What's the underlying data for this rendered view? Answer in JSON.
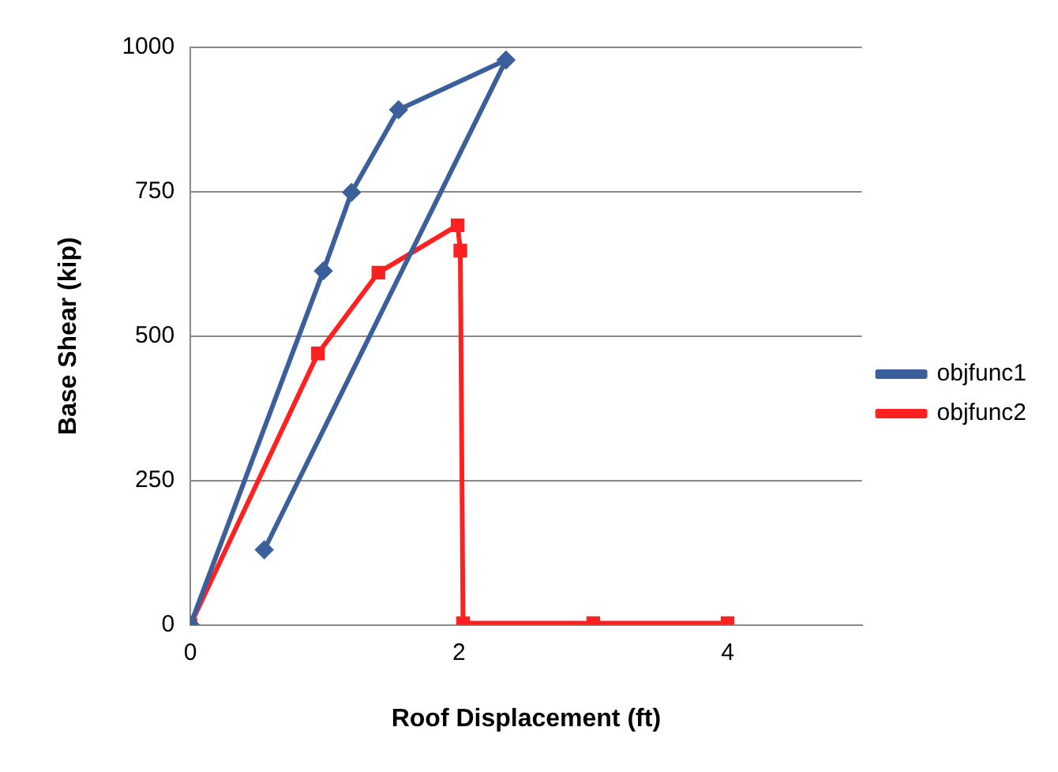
{
  "chart_data": {
    "type": "line",
    "xlabel": "Roof Displacement (ft)",
    "ylabel": "Base Shear (kip)",
    "xlim": [
      0,
      5
    ],
    "xticks": [
      0,
      2,
      4
    ],
    "ylim": [
      0,
      1000
    ],
    "yticks": [
      0,
      250,
      500,
      750,
      1000
    ],
    "grid": "y",
    "legend": "right",
    "series": [
      {
        "name": "objfunc1",
        "color": "#3a5f9a",
        "marker": "diamond",
        "x": [
          0,
          0.99,
          1.2,
          1.55,
          2.35,
          0.55
        ],
        "values": [
          0,
          613,
          749,
          892,
          978,
          130
        ]
      },
      {
        "name": "objfunc2",
        "color": "#ff2020",
        "marker": "square",
        "x": [
          0,
          0.95,
          1.4,
          1.99,
          2.01,
          2.03,
          3,
          4
        ],
        "values": [
          0,
          470,
          610,
          692,
          648,
          3,
          3,
          3
        ]
      }
    ]
  }
}
